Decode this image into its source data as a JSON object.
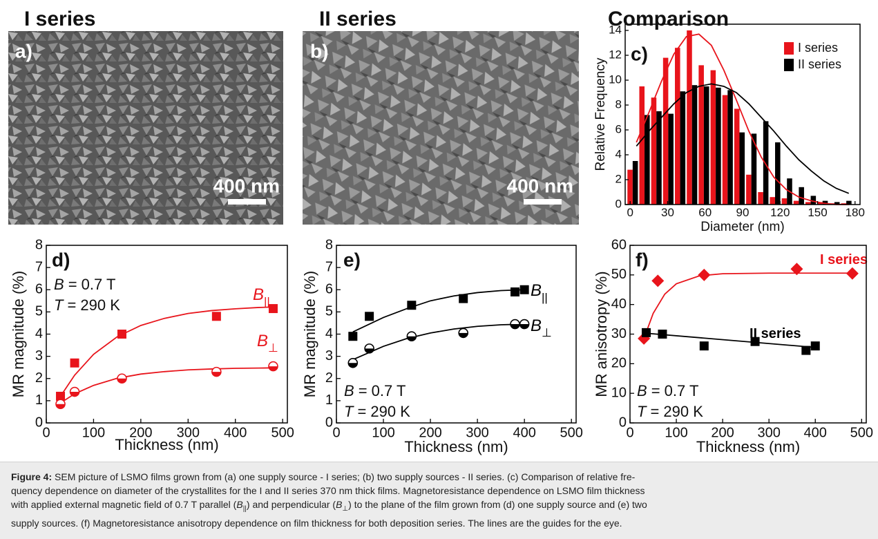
{
  "images": [
    {
      "heading": "I series",
      "panel": "a)",
      "scale_bar": "400 nm"
    },
    {
      "heading": "II series",
      "panel": "b)",
      "scale_bar": "400 nm"
    }
  ],
  "chart_data": [
    {
      "type": "bar",
      "title": "Comparison",
      "panel": "c)",
      "xlabel": "Diameter (nm)",
      "ylabel": "Relative Frequency",
      "x": [
        2,
        11.5,
        21,
        30.5,
        40,
        49.5,
        59,
        68.5,
        78,
        87.5,
        97,
        106.5,
        116,
        125.5,
        135,
        144.5,
        154,
        163.5,
        173
      ],
      "series": [
        {
          "name": "I series",
          "color": "#e8141b",
          "values": [
            2.8,
            9.5,
            8.6,
            11.8,
            12.6,
            14.0,
            11.2,
            10.8,
            8.8,
            7.7,
            2.4,
            1.0,
            0.6,
            0.5,
            0.3,
            0.2,
            0.2,
            0.1,
            0.1
          ]
        },
        {
          "name": "II series",
          "color": "#000000",
          "values": [
            3.5,
            7.2,
            7.5,
            7.3,
            9.1,
            9.6,
            9.5,
            9.4,
            9.2,
            5.8,
            5.7,
            6.7,
            5.0,
            2.1,
            1.4,
            0.7,
            0.3,
            0.2,
            0.3
          ]
        }
      ],
      "fits": [
        {
          "color": "#e8141b",
          "x": [
            5,
            15,
            25,
            35,
            45,
            55,
            65,
            75,
            85,
            95,
            105,
            115,
            125,
            135,
            145,
            155,
            165,
            175
          ],
          "values": [
            5.0,
            7.4,
            9.9,
            12.1,
            13.5,
            13.7,
            12.8,
            10.8,
            8.4,
            5.9,
            3.8,
            2.2,
            1.2,
            0.6,
            0.3,
            0.1,
            0.0,
            0.0
          ]
        },
        {
          "color": "#000000",
          "x": [
            5,
            15,
            25,
            35,
            45,
            55,
            65,
            75,
            85,
            95,
            105,
            115,
            125,
            135,
            145,
            155,
            165,
            175
          ],
          "values": [
            4.7,
            5.9,
            7.0,
            8.1,
            9.0,
            9.5,
            9.7,
            9.5,
            9.0,
            8.1,
            7.0,
            5.9,
            4.7,
            3.6,
            2.7,
            1.9,
            1.3,
            0.9
          ]
        }
      ],
      "xlim": [
        -4,
        184
      ],
      "xticks": [
        0,
        30,
        60,
        90,
        120,
        150,
        180
      ],
      "ylim": [
        0,
        14.5
      ],
      "yticks": [
        0,
        2,
        4,
        6,
        8,
        10,
        12,
        14
      ],
      "legend": "upper right"
    },
    {
      "type": "scatter",
      "panel": "d)",
      "xlabel": "Thickness (nm)",
      "ylabel": "MR magnitude (%)",
      "xlim": [
        0,
        510
      ],
      "xticks": [
        0,
        100,
        200,
        300,
        400,
        500
      ],
      "ylim": [
        0,
        8
      ],
      "yticks": [
        0,
        1,
        2,
        3,
        4,
        5,
        6,
        7,
        8
      ],
      "annotations": [
        {
          "symbol": "B",
          "text": "= 0.7 T"
        },
        {
          "symbol": "T",
          "text": "= 290 K"
        }
      ],
      "series": [
        {
          "name": "B",
          "sub": "||",
          "color": "#e8141b",
          "marker": "square",
          "x": [
            30,
            60,
            160,
            360,
            480
          ],
          "values": [
            1.2,
            2.7,
            4.0,
            4.8,
            5.15
          ],
          "fit": {
            "x": [
              30,
              60,
              100,
              150,
              200,
              250,
              300,
              350,
              400,
              450,
              480
            ],
            "values": [
              1.2,
              2.15,
              3.09,
              3.88,
              4.39,
              4.71,
              4.93,
              5.06,
              5.14,
              5.2,
              5.22
            ]
          }
        },
        {
          "name": "B",
          "sub": "⊥",
          "color": "#e8141b",
          "marker": "circle-half",
          "x": [
            30,
            60,
            160,
            360,
            480
          ],
          "values": [
            0.85,
            1.4,
            2.0,
            2.3,
            2.55
          ],
          "fit": {
            "x": [
              30,
              60,
              100,
              150,
              200,
              250,
              300,
              350,
              400,
              450,
              480
            ],
            "values": [
              0.9,
              1.31,
              1.69,
              2.01,
              2.2,
              2.31,
              2.39,
              2.43,
              2.46,
              2.47,
              2.48
            ]
          }
        }
      ]
    },
    {
      "type": "scatter",
      "panel": "e)",
      "xlabel": "Thickness (nm)",
      "ylabel": "MR magnitude (%)",
      "xlim": [
        0,
        510
      ],
      "xticks": [
        0,
        100,
        200,
        300,
        400,
        500
      ],
      "ylim": [
        0,
        8
      ],
      "yticks": [
        0,
        1,
        2,
        3,
        4,
        5,
        6,
        7,
        8
      ],
      "annotations": [
        {
          "symbol": "B",
          "text": "= 0.7 T"
        },
        {
          "symbol": "T",
          "text": "= 290 K"
        }
      ],
      "series": [
        {
          "name": "B",
          "sub": "||",
          "color": "#000000",
          "marker": "square",
          "x": [
            35,
            70,
            160,
            270,
            380,
            400
          ],
          "values": [
            3.9,
            4.8,
            5.3,
            5.6,
            5.9,
            6.0
          ],
          "fit": {
            "x": [
              35,
              100,
              150,
              200,
              250,
              300,
              350,
              400
            ],
            "values": [
              4.1,
              4.75,
              5.15,
              5.5,
              5.72,
              5.87,
              5.96,
              6.0
            ]
          }
        },
        {
          "name": "B",
          "sub": "⊥",
          "color": "#000000",
          "marker": "circle-half",
          "x": [
            35,
            70,
            160,
            270,
            380,
            400
          ],
          "values": [
            2.7,
            3.35,
            3.9,
            4.05,
            4.45,
            4.45
          ],
          "fit": {
            "x": [
              35,
              100,
              150,
              200,
              250,
              300,
              350,
              400
            ],
            "values": [
              2.85,
              3.45,
              3.8,
              4.05,
              4.23,
              4.35,
              4.42,
              4.45
            ]
          }
        }
      ]
    },
    {
      "type": "scatter",
      "panel": "f)",
      "xlabel": "Thickness (nm)",
      "ylabel": "MR anisotropy (%)",
      "xlim": [
        0,
        510
      ],
      "xticks": [
        0,
        100,
        200,
        300,
        400,
        500
      ],
      "ylim": [
        0,
        60
      ],
      "yticks": [
        0,
        10,
        20,
        30,
        40,
        50,
        60
      ],
      "annotations": [
        {
          "symbol": "B",
          "text": "= 0.7 T"
        },
        {
          "symbol": "T",
          "text": "= 290 K"
        }
      ],
      "series": [
        {
          "name": "I series",
          "color": "#e8141b",
          "marker": "diamond",
          "x": [
            30,
            60,
            160,
            360,
            480
          ],
          "values": [
            28.5,
            48,
            50,
            52,
            50.5
          ],
          "fit": {
            "x": [
              30,
              50,
              75,
              100,
              150,
              200,
              300,
              400,
              480
            ],
            "values": [
              28.5,
              37,
              43.5,
              47,
              49.7,
              50.4,
              50.6,
              50.6,
              50.6
            ]
          }
        },
        {
          "name": "II series",
          "color": "#000000",
          "marker": "square",
          "x": [
            35,
            70,
            160,
            270,
            380,
            400
          ],
          "values": [
            30.5,
            30,
            26,
            27.5,
            24.5,
            26
          ],
          "fit": {
            "x": [
              35,
              400
            ],
            "values": [
              30.3,
              25.5
            ]
          }
        }
      ]
    }
  ],
  "caption": {
    "label": "Figure 4:",
    "lines": [
      [
        "SEM picture of LSMO films grown from (a) one supply source - I series; (b) two supply sources - II series. (c) Comparison of relative fre-"
      ],
      [
        "quency dependence on diameter of the crystallites for the I and II series 370 nm thick films. Magnetoresistance dependence on LSMO film thickness"
      ],
      [
        "with applied external magnetic field of 0.7 T parallel (",
        "B",
        "||",
        ") and perpendicular (",
        "B",
        "⊥",
        ") to the plane of the film grown from (d) one supply source and (e) two"
      ],
      [
        "supply sources. (f) Magnetoresistance anisotropy dependence on film thickness for both deposition series. The lines are the guides for the eye."
      ]
    ]
  }
}
